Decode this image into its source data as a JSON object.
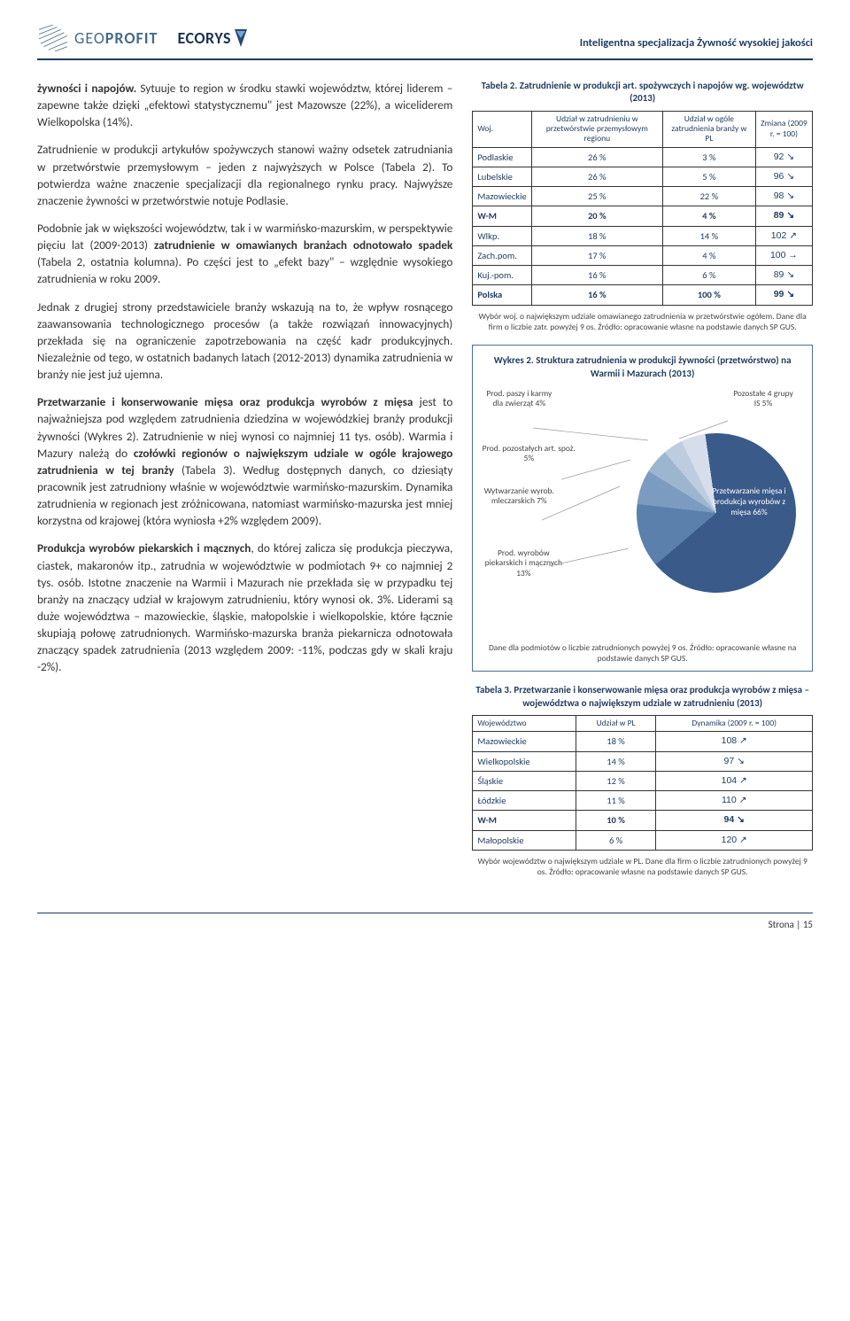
{
  "header": {
    "logo_geo_text1": "GEO",
    "logo_geo_text2": "PROFIT",
    "logo_ec_text": "ECORYS",
    "doc_title": "Inteligentna specjalizacja Żywność wysokiej jakości"
  },
  "body": {
    "p1_a": "żywności i napojów.",
    "p1_b": " Sytuuje to region w środku stawki województw, której liderem – zapewne także dzięki „efektowi statystycznemu\" jest Mazowsze (22%), a wiceliderem Wielkopolska (14%).",
    "p2": "Zatrudnienie w produkcji artykułów spożywczych stanowi ważny odsetek zatrudniania w przetwórstwie przemysłowym – jeden z najwyższych w Polsce (Tabela 2). To potwierdza ważne znaczenie specjalizacji dla regionalnego rynku pracy. Najwyższe znaczenie żywności w przetwórstwie notuje Podlasie.",
    "p3_a": "Podobnie jak w większości województw, tak i w warmińsko-mazurskim, w perspektywie pięciu lat (2009-2013) ",
    "p3_b": "zatrudnienie w omawianych branżach odnotowało spadek",
    "p3_c": " (Tabela 2, ostatnia kolumna). Po części jest to „efekt bazy\" – względnie wysokiego zatrudnienia w roku 2009.",
    "p4": "Jednak z drugiej strony przedstawiciele branży wskazują na to, że wpływ rosnącego zaawansowania technologicznego procesów (a także rozwiązań innowacyjnych) przekłada się na ograniczenie zapotrzebowania na część kadr produkcyjnych. Niezależnie od tego, w ostatnich badanych latach (2012-2013) dynamika zatrudnienia w branży nie jest już ujemna.",
    "p5_a": "Przetwarzanie i konserwowanie mięsa oraz produkcja wyrobów z mięsa",
    "p5_b": " jest to najważniejsza pod względem zatrudnienia dziedzina w wojewódzkiej branży produkcji żywności (Wykres 2). Zatrudnienie w niej wynosi co najmniej 11 tys. osób). Warmia i Mazury należą do ",
    "p5_c": "czołówki regionów o największym udziale w ogóle krajowego zatrudnienia w tej branży",
    "p5_d": " (Tabela 3). Według dostępnych danych, co dziesiąty pracownik jest zatrudniony właśnie w województwie warmińsko-mazurskim. Dynamika zatrudnienia w regionach jest zróżnicowana, natomiast warmińsko-mazurska jest mniej korzystna od krajowej (która wyniosła +2% względem 2009).",
    "p6_a": "Produkcja wyrobów piekarskich i mącznych",
    "p6_b": ", do której zalicza się produkcja pieczywa, ciastek, makaronów itp., zatrudnia w województwie w podmiotach 9+ co najmniej 2 tys. osób. Istotne znaczenie na Warmii i Mazurach nie przekłada się w przypadku tej branży na znaczący udział w krajowym zatrudnieniu, który wynosi ok. 3%. Liderami są duże województwa – mazowieckie, śląskie, małopolskie i wielkopolskie, które łącznie skupiają połowę zatrudnionych. Warmińsko-mazurska branża piekarnicza odnotowała znaczący spadek zatrudnienia (2013 względem 2009: -11%, podczas gdy w skali kraju -2%)."
  },
  "table2": {
    "title": "Tabela 2. Zatrudnienie w produkcji art. spożywczych i napojów wg. województw (2013)",
    "h1": "Woj.",
    "h2": "Udział w zatrudnieniu w przetwórstwie przemysłowym regionu",
    "h3": "Udział w ogóle zatrudnienia branży w PL",
    "h4": "Zmiana (2009 r. = 100)",
    "rows": [
      {
        "c1": "Podlaskie",
        "c2": "26 %",
        "c3": "3 %",
        "c4": "92 ↘"
      },
      {
        "c1": "Lubelskie",
        "c2": "26 %",
        "c3": "5 %",
        "c4": "96 ↘"
      },
      {
        "c1": "Mazowieckie",
        "c2": "25 %",
        "c3": "22 %",
        "c4": "98 ↘"
      },
      {
        "c1": "W-M",
        "c2": "20 %",
        "c3": "4 %",
        "c4": "89 ↘",
        "bold": true
      },
      {
        "c1": "Wlkp.",
        "c2": "18 %",
        "c3": "14 %",
        "c4": "102 ↗"
      },
      {
        "c1": "Zach.pom.",
        "c2": "17 %",
        "c3": "4 %",
        "c4": "100 →"
      },
      {
        "c1": "Kuj.-pom.",
        "c2": "16 %",
        "c3": "6 %",
        "c4": "89 ↘"
      },
      {
        "c1": "Polska",
        "c2": "16 %",
        "c3": "100 %",
        "c4": "99 ↘",
        "bold": true
      }
    ],
    "note": "Wybór woj. o największym udziale omawianego zatrudnienia w przetwórstwie ogółem. Dane dla firm o liczbie zatr. powyżej 9 os. Źródło: opracowanie własne na podstawie danych SP GUS."
  },
  "chart": {
    "title": "Wykres 2. Struktura zatrudnienia w produkcji żywności (przetwórstwo) na Warmii i Mazurach (2013)",
    "labels": {
      "l1": "Prod. paszy i karmy dla zwierząt 4%",
      "l2": "Pozostałe 4 grupy IS 5%",
      "l3": "Prod. pozostałych art. spoż. 5%",
      "l4": "Wytwarzanie wyrob. mleczarskich 7%",
      "l5": "Prod. wyrobów piekarskich i mącznych 13%",
      "big": "Przetwarzanie mięsa i produkcja wyrobów z mięsa 66%"
    },
    "note": "Dane dla podmiotów o liczbie zatrudnionych powyżej 9 os. Źródło: opracowanie własne na podstawie danych SP GUS."
  },
  "table3": {
    "title": "Tabela 3. Przetwarzanie i konserwowanie mięsa oraz produkcja wyrobów z mięsa – województwa o największym udziale w zatrudnieniu (2013)",
    "h1": "Województwo",
    "h2": "Udział w PL",
    "h3": "Dynamika (2009 r. = 100)",
    "rows": [
      {
        "c1": "Mazowieckie",
        "c2": "18 %",
        "c3": "108 ↗"
      },
      {
        "c1": "Wielkopolskie",
        "c2": "14 %",
        "c3": "97 ↘"
      },
      {
        "c1": "Śląskie",
        "c2": "12 %",
        "c3": "104 ↗"
      },
      {
        "c1": "Łódzkie",
        "c2": "11 %",
        "c3": "110 ↗"
      },
      {
        "c1": "W-M",
        "c2": "10 %",
        "c3": "94 ↘",
        "bold": true
      },
      {
        "c1": "Małopolskie",
        "c2": "6 %",
        "c3": "120 ↗"
      }
    ],
    "note": "Wybór województw o największym udziale w PL. Dane dla firm o liczbie zatrudnionych powyżej 9 os. Źródło: opracowanie własne na podstawie danych SP GUS."
  },
  "footer": {
    "page": "Strona | 15"
  }
}
